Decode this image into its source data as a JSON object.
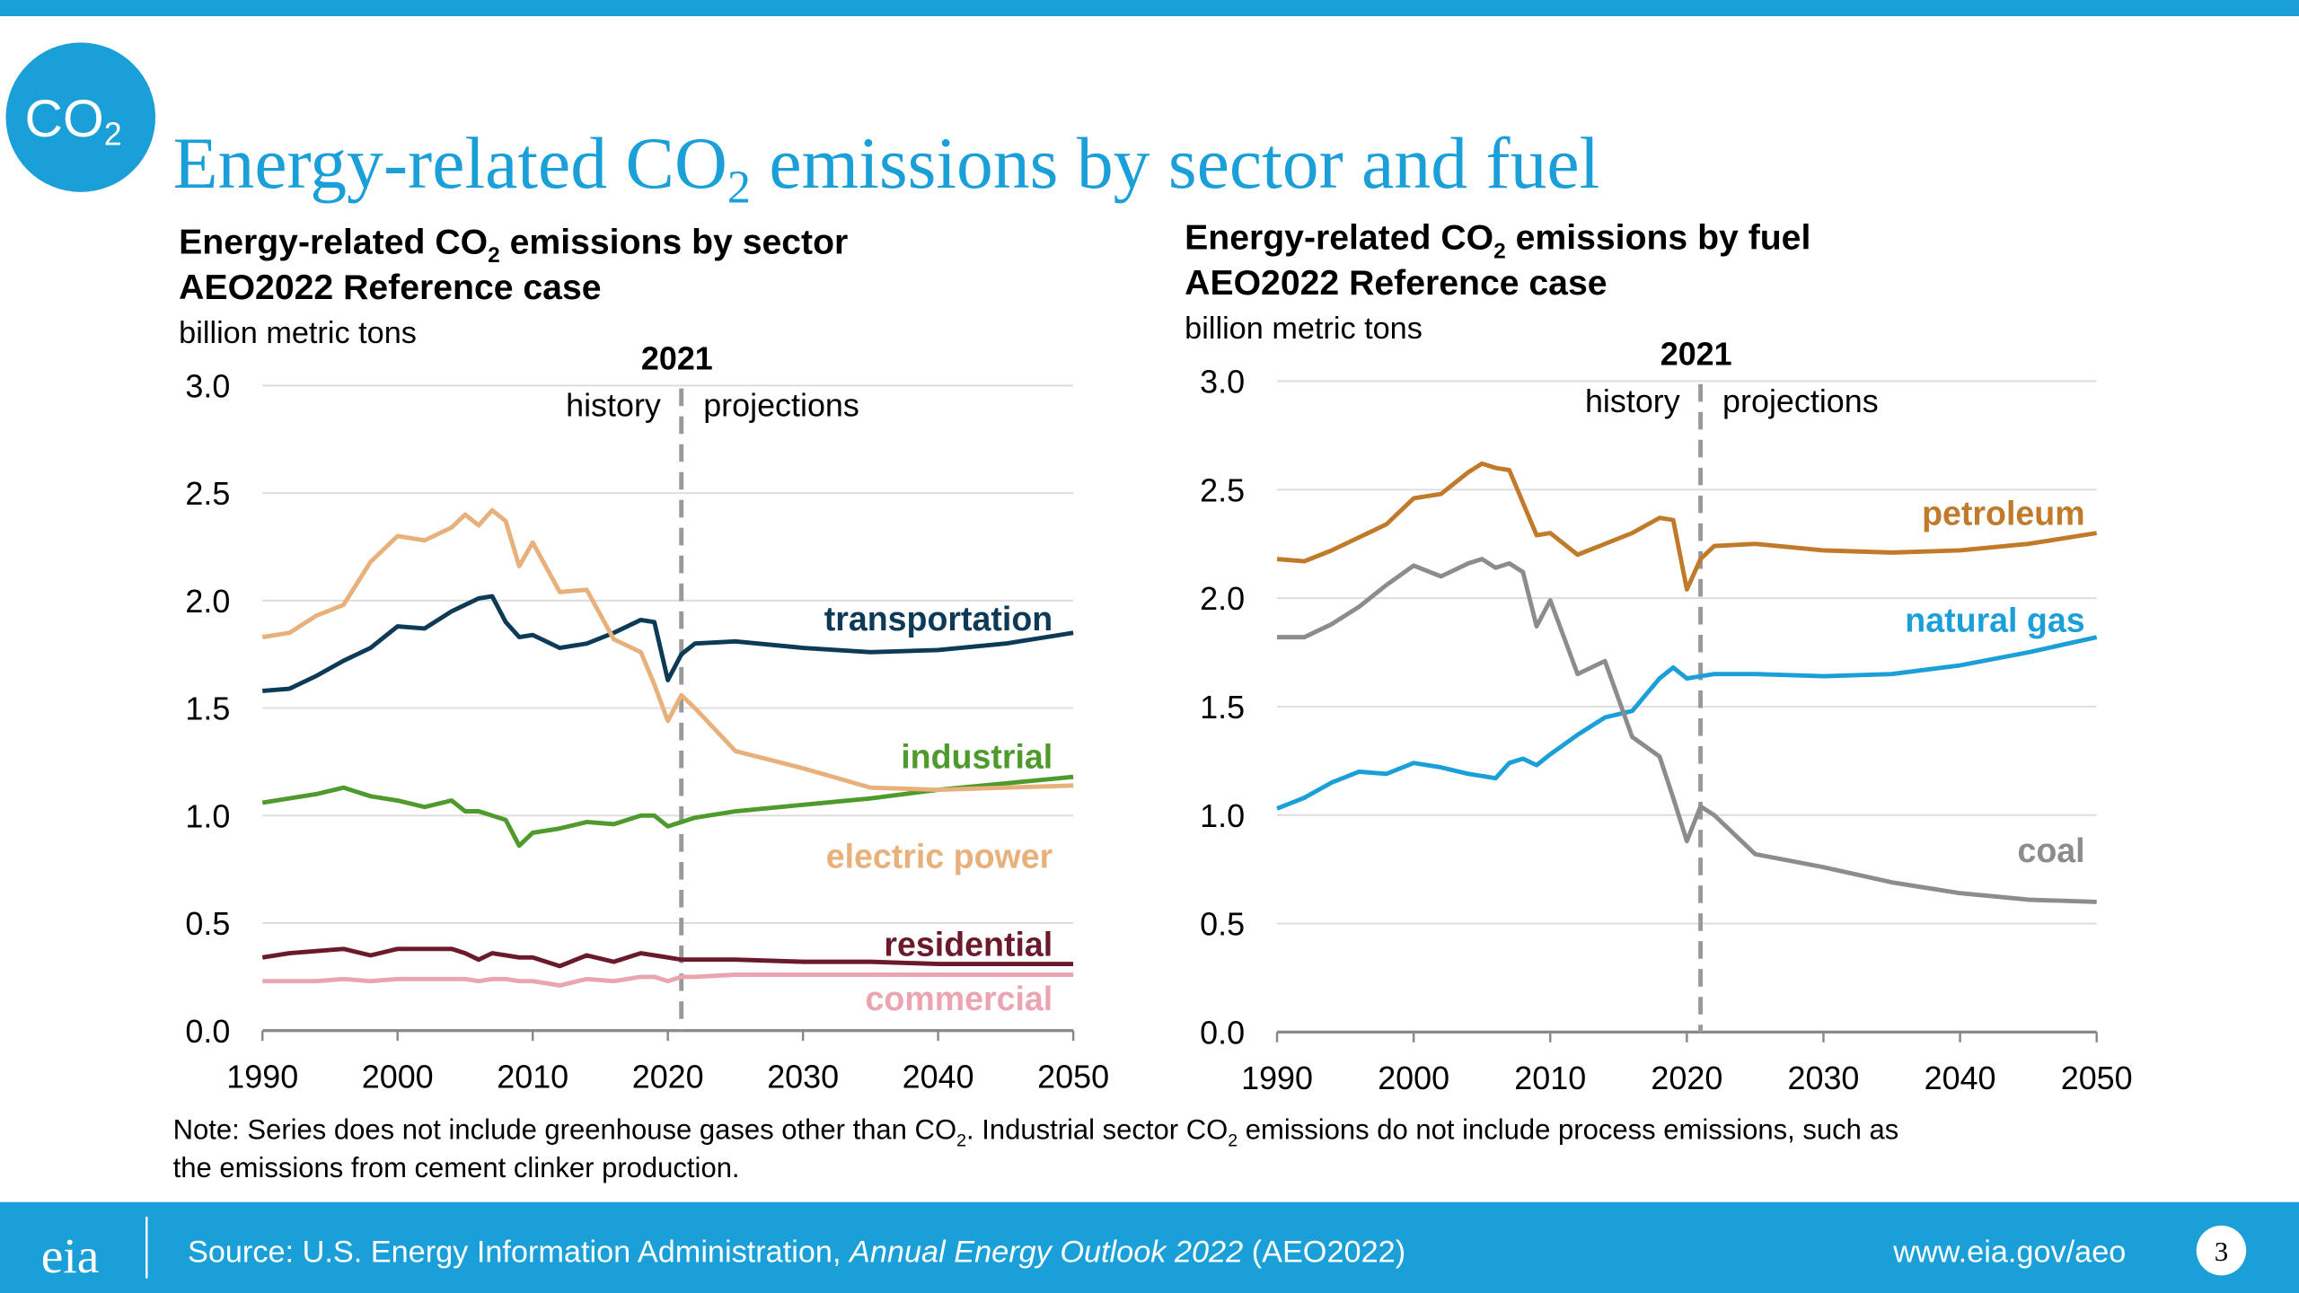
{
  "header": {
    "badge": {
      "before": "CO",
      "sub": "2"
    },
    "title": {
      "before": "Energy-related CO",
      "sub": "2",
      "after": " emissions by sector and fuel"
    }
  },
  "chart_data": [
    {
      "type": "line",
      "title": {
        "before": "Energy-related CO",
        "sub": "2",
        "after": " emissions by sector"
      },
      "subtitle": "AEO2022 Reference case",
      "y_label": "billion metric tons",
      "divider": {
        "x": 2021,
        "left": "history",
        "right": "projections"
      },
      "x": [
        1990,
        1992,
        1994,
        1996,
        1998,
        2000,
        2002,
        2004,
        2005,
        2006,
        2007,
        2008,
        2009,
        2010,
        2012,
        2014,
        2016,
        2018,
        2019,
        2020,
        2021,
        2022,
        2025,
        2030,
        2035,
        2040,
        2045,
        2050
      ],
      "xlim": [
        1990,
        2050
      ],
      "xticks": [
        1990,
        2000,
        2010,
        2020,
        2030,
        2040,
        2050
      ],
      "ylim": [
        0,
        3
      ],
      "yticks": [
        {
          "value": 0,
          "label": "0.0"
        },
        0.5,
        {
          "value": 1,
          "label": "1.0"
        },
        1.5,
        {
          "value": 2,
          "label": "2.0"
        },
        2.5,
        {
          "value": 3,
          "label": "3.0"
        }
      ],
      "grid": true,
      "series": [
        {
          "name": "transportation",
          "color": "#0d3a57",
          "values": [
            1.58,
            1.59,
            1.65,
            1.72,
            1.78,
            1.88,
            1.87,
            1.95,
            1.98,
            2.01,
            2.02,
            1.9,
            1.83,
            1.84,
            1.78,
            1.8,
            1.85,
            1.91,
            1.9,
            1.63,
            1.75,
            1.8,
            1.81,
            1.78,
            1.76,
            1.77,
            1.8,
            1.85
          ]
        },
        {
          "name": "industrial",
          "color": "#4e9a2c",
          "values": [
            1.06,
            1.08,
            1.1,
            1.13,
            1.09,
            1.07,
            1.04,
            1.07,
            1.02,
            1.02,
            1.0,
            0.98,
            0.86,
            0.92,
            0.94,
            0.97,
            0.96,
            1.0,
            1.0,
            0.95,
            0.97,
            0.99,
            1.02,
            1.05,
            1.08,
            1.12,
            1.15,
            1.18
          ]
        },
        {
          "name": "electric power",
          "color": "#e8b07a",
          "values": [
            1.83,
            1.85,
            1.93,
            1.98,
            2.18,
            2.3,
            2.28,
            2.34,
            2.4,
            2.35,
            2.42,
            2.37,
            2.16,
            2.27,
            2.04,
            2.05,
            1.82,
            1.76,
            1.61,
            1.44,
            1.56,
            1.5,
            1.3,
            1.22,
            1.13,
            1.12,
            1.13,
            1.14
          ]
        },
        {
          "name": "residential",
          "color": "#6b1a2b",
          "values": [
            0.34,
            0.36,
            0.37,
            0.38,
            0.35,
            0.38,
            0.38,
            0.38,
            0.36,
            0.33,
            0.36,
            0.35,
            0.34,
            0.34,
            0.3,
            0.35,
            0.32,
            0.36,
            0.35,
            0.34,
            0.33,
            0.33,
            0.33,
            0.32,
            0.32,
            0.31,
            0.31,
            0.31
          ]
        },
        {
          "name": "commercial",
          "color": "#eaa5b0",
          "values": [
            0.23,
            0.23,
            0.23,
            0.24,
            0.23,
            0.24,
            0.24,
            0.24,
            0.24,
            0.23,
            0.24,
            0.24,
            0.23,
            0.23,
            0.21,
            0.24,
            0.23,
            0.25,
            0.25,
            0.23,
            0.25,
            0.25,
            0.26,
            0.26,
            0.26,
            0.26,
            0.26,
            0.26
          ]
        }
      ]
    },
    {
      "type": "line",
      "title": {
        "before": "Energy-related CO",
        "sub": "2",
        "after": " emissions by fuel"
      },
      "subtitle": "AEO2022 Reference case",
      "y_label": "billion metric tons",
      "divider": {
        "x": 2021,
        "left": "history",
        "right": "projections"
      },
      "x": [
        1990,
        1992,
        1994,
        1996,
        1998,
        2000,
        2002,
        2004,
        2005,
        2006,
        2007,
        2008,
        2009,
        2010,
        2012,
        2014,
        2016,
        2018,
        2019,
        2020,
        2021,
        2022,
        2025,
        2030,
        2035,
        2040,
        2045,
        2050
      ],
      "xlim": [
        1990,
        2050
      ],
      "xticks": [
        1990,
        2000,
        2010,
        2020,
        2030,
        2040,
        2050
      ],
      "ylim": [
        0,
        3
      ],
      "yticks": [
        {
          "value": 0,
          "label": "0.0"
        },
        0.5,
        {
          "value": 1,
          "label": "1.0"
        },
        1.5,
        {
          "value": 2,
          "label": "2.0"
        },
        2.5,
        {
          "value": 3,
          "label": "3.0"
        }
      ],
      "grid": true,
      "series": [
        {
          "name": "petroleum",
          "color": "#c07a2a",
          "values": [
            2.18,
            2.17,
            2.22,
            2.28,
            2.34,
            2.46,
            2.48,
            2.58,
            2.62,
            2.6,
            2.59,
            2.44,
            2.29,
            2.3,
            2.2,
            2.25,
            2.3,
            2.37,
            2.36,
            2.04,
            2.18,
            2.24,
            2.25,
            2.22,
            2.21,
            2.22,
            2.25,
            2.3
          ]
        },
        {
          "name": "natural gas",
          "color": "#1a9fd8",
          "values": [
            1.03,
            1.08,
            1.15,
            1.2,
            1.19,
            1.24,
            1.22,
            1.19,
            1.18,
            1.17,
            1.24,
            1.26,
            1.23,
            1.28,
            1.37,
            1.45,
            1.48,
            1.63,
            1.68,
            1.63,
            1.64,
            1.65,
            1.65,
            1.64,
            1.65,
            1.69,
            1.75,
            1.82
          ]
        },
        {
          "name": "coal",
          "color": "#8c8c8c",
          "values": [
            1.82,
            1.82,
            1.88,
            1.96,
            2.06,
            2.15,
            2.1,
            2.16,
            2.18,
            2.14,
            2.16,
            2.12,
            1.87,
            1.99,
            1.65,
            1.71,
            1.36,
            1.27,
            1.08,
            0.88,
            1.04,
            1.0,
            0.82,
            0.76,
            0.69,
            0.64,
            0.61,
            0.6
          ]
        }
      ]
    }
  ],
  "note": [
    "Note: Series does not include greenhouse gases other than CO",
    "2",
    ". Industrial sector CO",
    "2",
    " emissions do not include process emissions, such as",
    "the emissions from cement clinker production."
  ],
  "footer": {
    "logo": "eia",
    "source_before": "Source: U.S. Energy Information Administration, ",
    "source_italic": "Annual Energy Outlook 2022",
    "source_after": " (AEO2022)",
    "url": "www.eia.gov/aeo",
    "page": "3"
  }
}
